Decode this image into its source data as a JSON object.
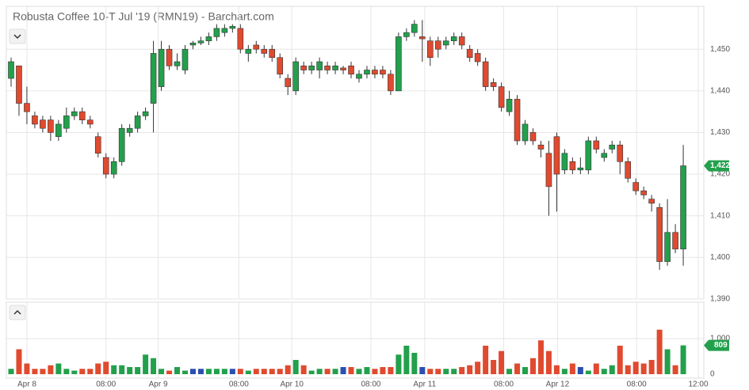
{
  "chart_data": [
    {
      "type": "candlestick",
      "title": "Robusta Coffee 10-T Jul '19 (RMN19) - Barchart.com",
      "open": [
        1443,
        1446,
        1437,
        1434,
        1433,
        1433,
        1429,
        1431,
        1434,
        1435,
        1433,
        1429,
        1424,
        1420,
        1423,
        1430,
        1431,
        1434,
        1437,
        1441,
        1450,
        1446,
        1445,
        1451,
        1451.5,
        1452,
        1453,
        1454,
        1455,
        1455,
        1449,
        1451,
        1450,
        1450,
        1448,
        1443,
        1440,
        1446,
        1445,
        1445,
        1446,
        1445,
        1445.5,
        1446,
        1443,
        1444,
        1445,
        1445,
        1444,
        1440,
        1453,
        1454,
        1453,
        1452,
        1452,
        1451,
        1452,
        1453,
        1450,
        1449,
        1447,
        1442,
        1441,
        1435,
        1438,
        1428,
        1430,
        1427,
        1425,
        1429,
        1421,
        1423,
        1421,
        1421,
        1428,
        1424,
        1426,
        1427,
        1423,
        1418,
        1416,
        1414,
        1412,
        1399,
        1406,
        1402
      ],
      "high": [
        1448,
        1446,
        1441,
        1435,
        1434,
        1434,
        1433,
        1436,
        1436,
        1436,
        1434,
        1430,
        1425,
        1424,
        1432,
        1432,
        1435,
        1436,
        1452,
        1452,
        1451,
        1449,
        1451,
        1452,
        1453,
        1454,
        1456,
        1456,
        1456,
        1456,
        1451,
        1452,
        1451,
        1451,
        1449,
        1444,
        1448,
        1447,
        1447,
        1448,
        1447,
        1447,
        1446,
        1447,
        1445,
        1446,
        1446,
        1446,
        1445,
        1454,
        1455,
        1457,
        1457,
        1453,
        1453,
        1453,
        1454,
        1454,
        1451,
        1450,
        1448,
        1443,
        1442,
        1440,
        1439,
        1433,
        1431,
        1428,
        1428,
        1430,
        1426,
        1424,
        1424,
        1429,
        1429,
        1426,
        1428,
        1428,
        1424,
        1419,
        1417,
        1415,
        1413,
        1414,
        1408,
        1427
      ],
      "low": [
        1441,
        1434,
        1432,
        1431,
        1430,
        1428,
        1428,
        1430,
        1433,
        1432,
        1431,
        1424,
        1419,
        1419,
        1422,
        1429,
        1430,
        1433,
        1430,
        1440,
        1445,
        1445,
        1444,
        1450,
        1451,
        1451,
        1452,
        1453,
        1454,
        1449,
        1447,
        1449,
        1448,
        1447,
        1443,
        1439,
        1439,
        1444,
        1444,
        1443,
        1444,
        1444,
        1444,
        1443,
        1442,
        1443,
        1443,
        1443,
        1439,
        1440,
        1452,
        1453,
        1447,
        1446,
        1448,
        1450,
        1451,
        1450,
        1447,
        1446,
        1440,
        1440,
        1435,
        1434,
        1427,
        1427,
        1427,
        1424,
        1410,
        1411,
        1420,
        1420,
        1420,
        1420,
        1425,
        1423,
        1425,
        1420,
        1418,
        1415,
        1414,
        1411,
        1397,
        1398,
        1401,
        1398
      ],
      "close": [
        1447,
        1437,
        1435,
        1432,
        1431,
        1430,
        1432,
        1434,
        1435,
        1433,
        1432,
        1425,
        1420,
        1423,
        1431,
        1431,
        1434,
        1435,
        1449,
        1450,
        1446,
        1447,
        1450,
        1451.5,
        1452,
        1453,
        1455,
        1455,
        1455.5,
        1450,
        1450,
        1450,
        1449,
        1448,
        1444,
        1441,
        1447,
        1445,
        1446,
        1447,
        1445,
        1446,
        1445,
        1444,
        1444,
        1445,
        1444,
        1444,
        1440,
        1453,
        1454,
        1456,
        1452.5,
        1448,
        1450,
        1452,
        1453,
        1451,
        1448,
        1447,
        1441,
        1441,
        1436,
        1438,
        1428,
        1432,
        1428,
        1426,
        1417,
        1420,
        1425,
        1421,
        1421.5,
        1428,
        1426,
        1425,
        1427,
        1423,
        1419,
        1416,
        1415,
        1413,
        1399,
        1406,
        1402,
        1422
      ],
      "up_color": "#23a04c",
      "down_color": "#e04a2f",
      "xlim": [
        -0.6,
        87.6
      ],
      "xticks": [
        {
          "value": 2,
          "label": "Apr 8"
        },
        {
          "value": 12,
          "label": "08:00"
        },
        {
          "value": 18.6,
          "label": "Apr 9"
        },
        {
          "value": 28.8,
          "label": "08:00"
        },
        {
          "value": 35.5,
          "label": "Apr 10"
        },
        {
          "value": 45.5,
          "label": "08:00"
        },
        {
          "value": 52.3,
          "label": "Apr 11"
        },
        {
          "value": 62.3,
          "label": "08:00"
        },
        {
          "value": 69.1,
          "label": "Apr 12"
        },
        {
          "value": 79.1,
          "label": "08:00"
        },
        {
          "value": 86.9,
          "label": "12:00"
        }
      ],
      "ylim": [
        1390,
        1460.3
      ],
      "yticks": [
        {
          "value": 1390,
          "label": "1,390"
        },
        {
          "value": 1400,
          "label": "1,400"
        },
        {
          "value": 1410,
          "label": "1,410"
        },
        {
          "value": 1420,
          "label": "1,420"
        },
        {
          "value": 1430,
          "label": "1,430"
        },
        {
          "value": 1440,
          "label": "1,440"
        },
        {
          "value": 1450,
          "label": "1,450"
        }
      ],
      "grid": true,
      "last_price": {
        "value": 1422,
        "label": "1,422"
      },
      "tag_color": "#23a04c"
    },
    {
      "type": "bar",
      "values": [
        150,
        700,
        300,
        150,
        150,
        250,
        300,
        150,
        100,
        150,
        150,
        300,
        350,
        250,
        250,
        200,
        200,
        550,
        450,
        150,
        100,
        200,
        100,
        150,
        150,
        150,
        150,
        150,
        150,
        150,
        100,
        150,
        150,
        150,
        150,
        250,
        400,
        250,
        100,
        150,
        150,
        150,
        200,
        200,
        150,
        200,
        150,
        200,
        200,
        550,
        800,
        600,
        200,
        150,
        150,
        150,
        150,
        200,
        250,
        350,
        800,
        400,
        650,
        150,
        300,
        200,
        450,
        950,
        650,
        250,
        150,
        300,
        200,
        100,
        300,
        150,
        250,
        800,
        250,
        350,
        300,
        400,
        1250,
        700,
        250,
        809
      ],
      "flat_color": "#2a4fb0",
      "ylim": [
        0,
        2022
      ],
      "yticks": [
        0,
        {
          "value": 1000,
          "label": "1,000"
        }
      ],
      "grid": true
    }
  ]
}
